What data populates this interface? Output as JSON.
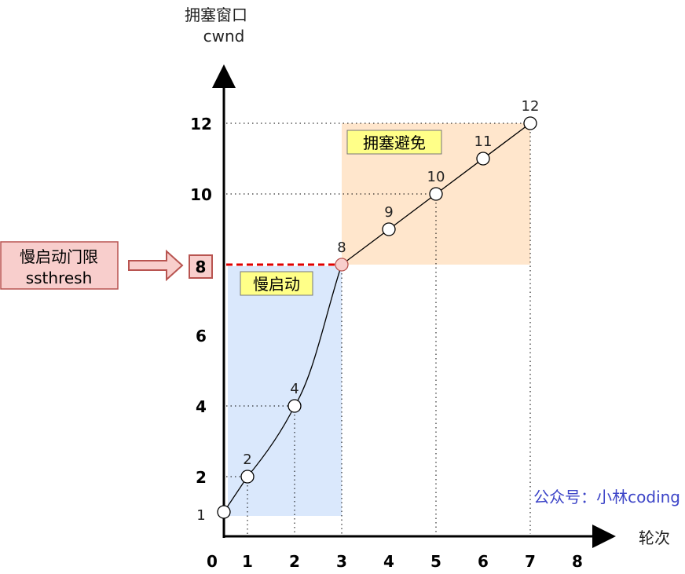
{
  "chart_data": {
    "type": "line",
    "ylabel_line1": "拥塞窗口",
    "ylabel_line2": "cwnd",
    "xlabel": "轮次",
    "x_ticks": [
      "0",
      "1",
      "2",
      "3",
      "4",
      "5",
      "6",
      "7",
      "8"
    ],
    "y_ticks": [
      "12",
      "10",
      "8",
      "6",
      "4",
      "2",
      "1"
    ],
    "x": [
      0,
      1,
      2,
      3,
      4,
      5,
      6,
      7
    ],
    "y": [
      1,
      2,
      4,
      8,
      9,
      10,
      11,
      12
    ],
    "point_labels": [
      "1",
      "2",
      "4",
      "8",
      "9",
      "10",
      "11",
      "12"
    ],
    "ssthresh": 8,
    "grid": false,
    "regions": [
      {
        "label": "慢启动",
        "x_range": [
          0,
          3
        ],
        "y_range": [
          1,
          8
        ],
        "color": "#dae8fc"
      },
      {
        "label": "拥塞避免",
        "x_range": [
          3,
          7
        ],
        "y_range": [
          8,
          12
        ],
        "color": "#ffe6cc"
      }
    ]
  },
  "annotation": {
    "line1": "慢启动门限",
    "line2": "ssthresh",
    "value": "8"
  },
  "watermark": "公众号：小林coding",
  "colors": {
    "threshold_line": "#e00000",
    "label_box": "#ffff88",
    "annotation_fill": "#f8cecc",
    "annotation_border": "#b85450",
    "watermark": "#3d45c8"
  }
}
